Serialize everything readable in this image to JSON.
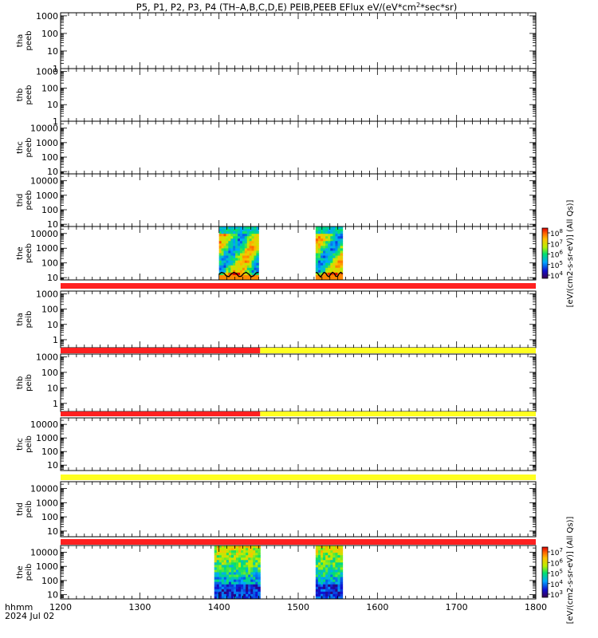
{
  "title_parts": {
    "prefix": "P5, P1, P2, P3, P4 (TH–A,B,C,D,E) PEIB,PEEB EFlux eV/(eV*cm",
    "sup": "2",
    "suffix": "*sec*sr)"
  },
  "time_label_line1": "hhmm",
  "time_label_line2": "2024 Jul 02",
  "colorbar_label": "[eV/(cm2-s-sr-eV)] (All Qs)]",
  "colors": {
    "bar_red": "#ff2020",
    "bar_yellow": "#ffff20",
    "trace": "#000000"
  },
  "chart_data": {
    "type": "heatmap",
    "x_ticks": [
      "1200",
      "1300",
      "1400",
      "1500",
      "1600",
      "1700",
      "1800"
    ],
    "xlim": [
      1200,
      1800
    ],
    "panels": [
      {
        "label1": "tha",
        "label2": "peeb",
        "yticks": [
          "1000",
          "100",
          "10",
          "1"
        ],
        "ylim": [
          1,
          1500
        ],
        "log": true
      },
      {
        "label1": "thb",
        "label2": "peeb",
        "yticks": [
          "1000",
          "100",
          "10",
          "1"
        ],
        "ylim": [
          1,
          1500
        ],
        "log": true
      },
      {
        "label1": "thc",
        "label2": "peeb",
        "yticks": [
          "10000",
          "1000",
          "100",
          "10"
        ],
        "ylim": [
          7,
          30000
        ],
        "log": true
      },
      {
        "label1": "thd",
        "label2": "peeb",
        "yticks": [
          "10000",
          "1000",
          "100",
          "10"
        ],
        "ylim": [
          7,
          30000
        ],
        "log": true
      },
      {
        "label1": "the",
        "label2": "peeb",
        "yticks": [
          "10000",
          "1000",
          "100",
          "10"
        ],
        "ylim": [
          7,
          30000
        ],
        "log": true,
        "data_intervals": [
          [
            1400,
            1450
          ],
          [
            1522,
            1556
          ]
        ],
        "colorbar": {
          "ticks": [
            "10",
            "10",
            "10",
            "10",
            "10"
          ],
          "exponents": [
            "8",
            "7",
            "6",
            "5",
            "4"
          ]
        }
      },
      {
        "label1": "tha",
        "label2": "peib",
        "yticks": [
          "1000",
          "100",
          "10",
          "1"
        ],
        "ylim": [
          0.3,
          1500
        ],
        "log": true
      },
      {
        "label1": "thb",
        "label2": "peib",
        "yticks": [
          "1000",
          "100",
          "10",
          "1"
        ],
        "ylim": [
          0.3,
          1500
        ],
        "log": true
      },
      {
        "label1": "thc",
        "label2": "peib",
        "yticks": [
          "10000",
          "1000",
          "100",
          "10"
        ],
        "ylim": [
          4,
          30000
        ],
        "log": true
      },
      {
        "label1": "thd",
        "label2": "peib",
        "yticks": [
          "10000",
          "1000",
          "100",
          "10"
        ],
        "ylim": [
          4,
          30000
        ],
        "log": true
      },
      {
        "label1": "the",
        "label2": "peib",
        "yticks": [
          "10000",
          "1000",
          "100",
          "10"
        ],
        "ylim": [
          5,
          30000
        ],
        "log": true,
        "data_intervals": [
          [
            1394,
            1452
          ],
          [
            1522,
            1556
          ]
        ],
        "colorbar": {
          "ticks": [
            "10",
            "10",
            "10",
            "10",
            "10"
          ],
          "exponents": [
            "7",
            "6",
            "5",
            "4",
            "3"
          ]
        }
      }
    ],
    "mode_bars": [
      {
        "segments": [
          {
            "from": 1200,
            "to": 1800,
            "color": "red"
          }
        ]
      },
      {
        "segments": [
          {
            "from": 1200,
            "to": 1452,
            "color": "red"
          },
          {
            "from": 1452,
            "to": 1800,
            "color": "yellow"
          }
        ]
      },
      {
        "segments": [
          {
            "from": 1200,
            "to": 1452,
            "color": "red"
          },
          {
            "from": 1452,
            "to": 1800,
            "color": "yellow"
          }
        ]
      },
      {
        "segments": [
          {
            "from": 1200,
            "to": 1800,
            "color": "yellow"
          }
        ]
      },
      {
        "segments": [
          {
            "from": 1200,
            "to": 1800,
            "color": "red"
          }
        ]
      }
    ]
  }
}
